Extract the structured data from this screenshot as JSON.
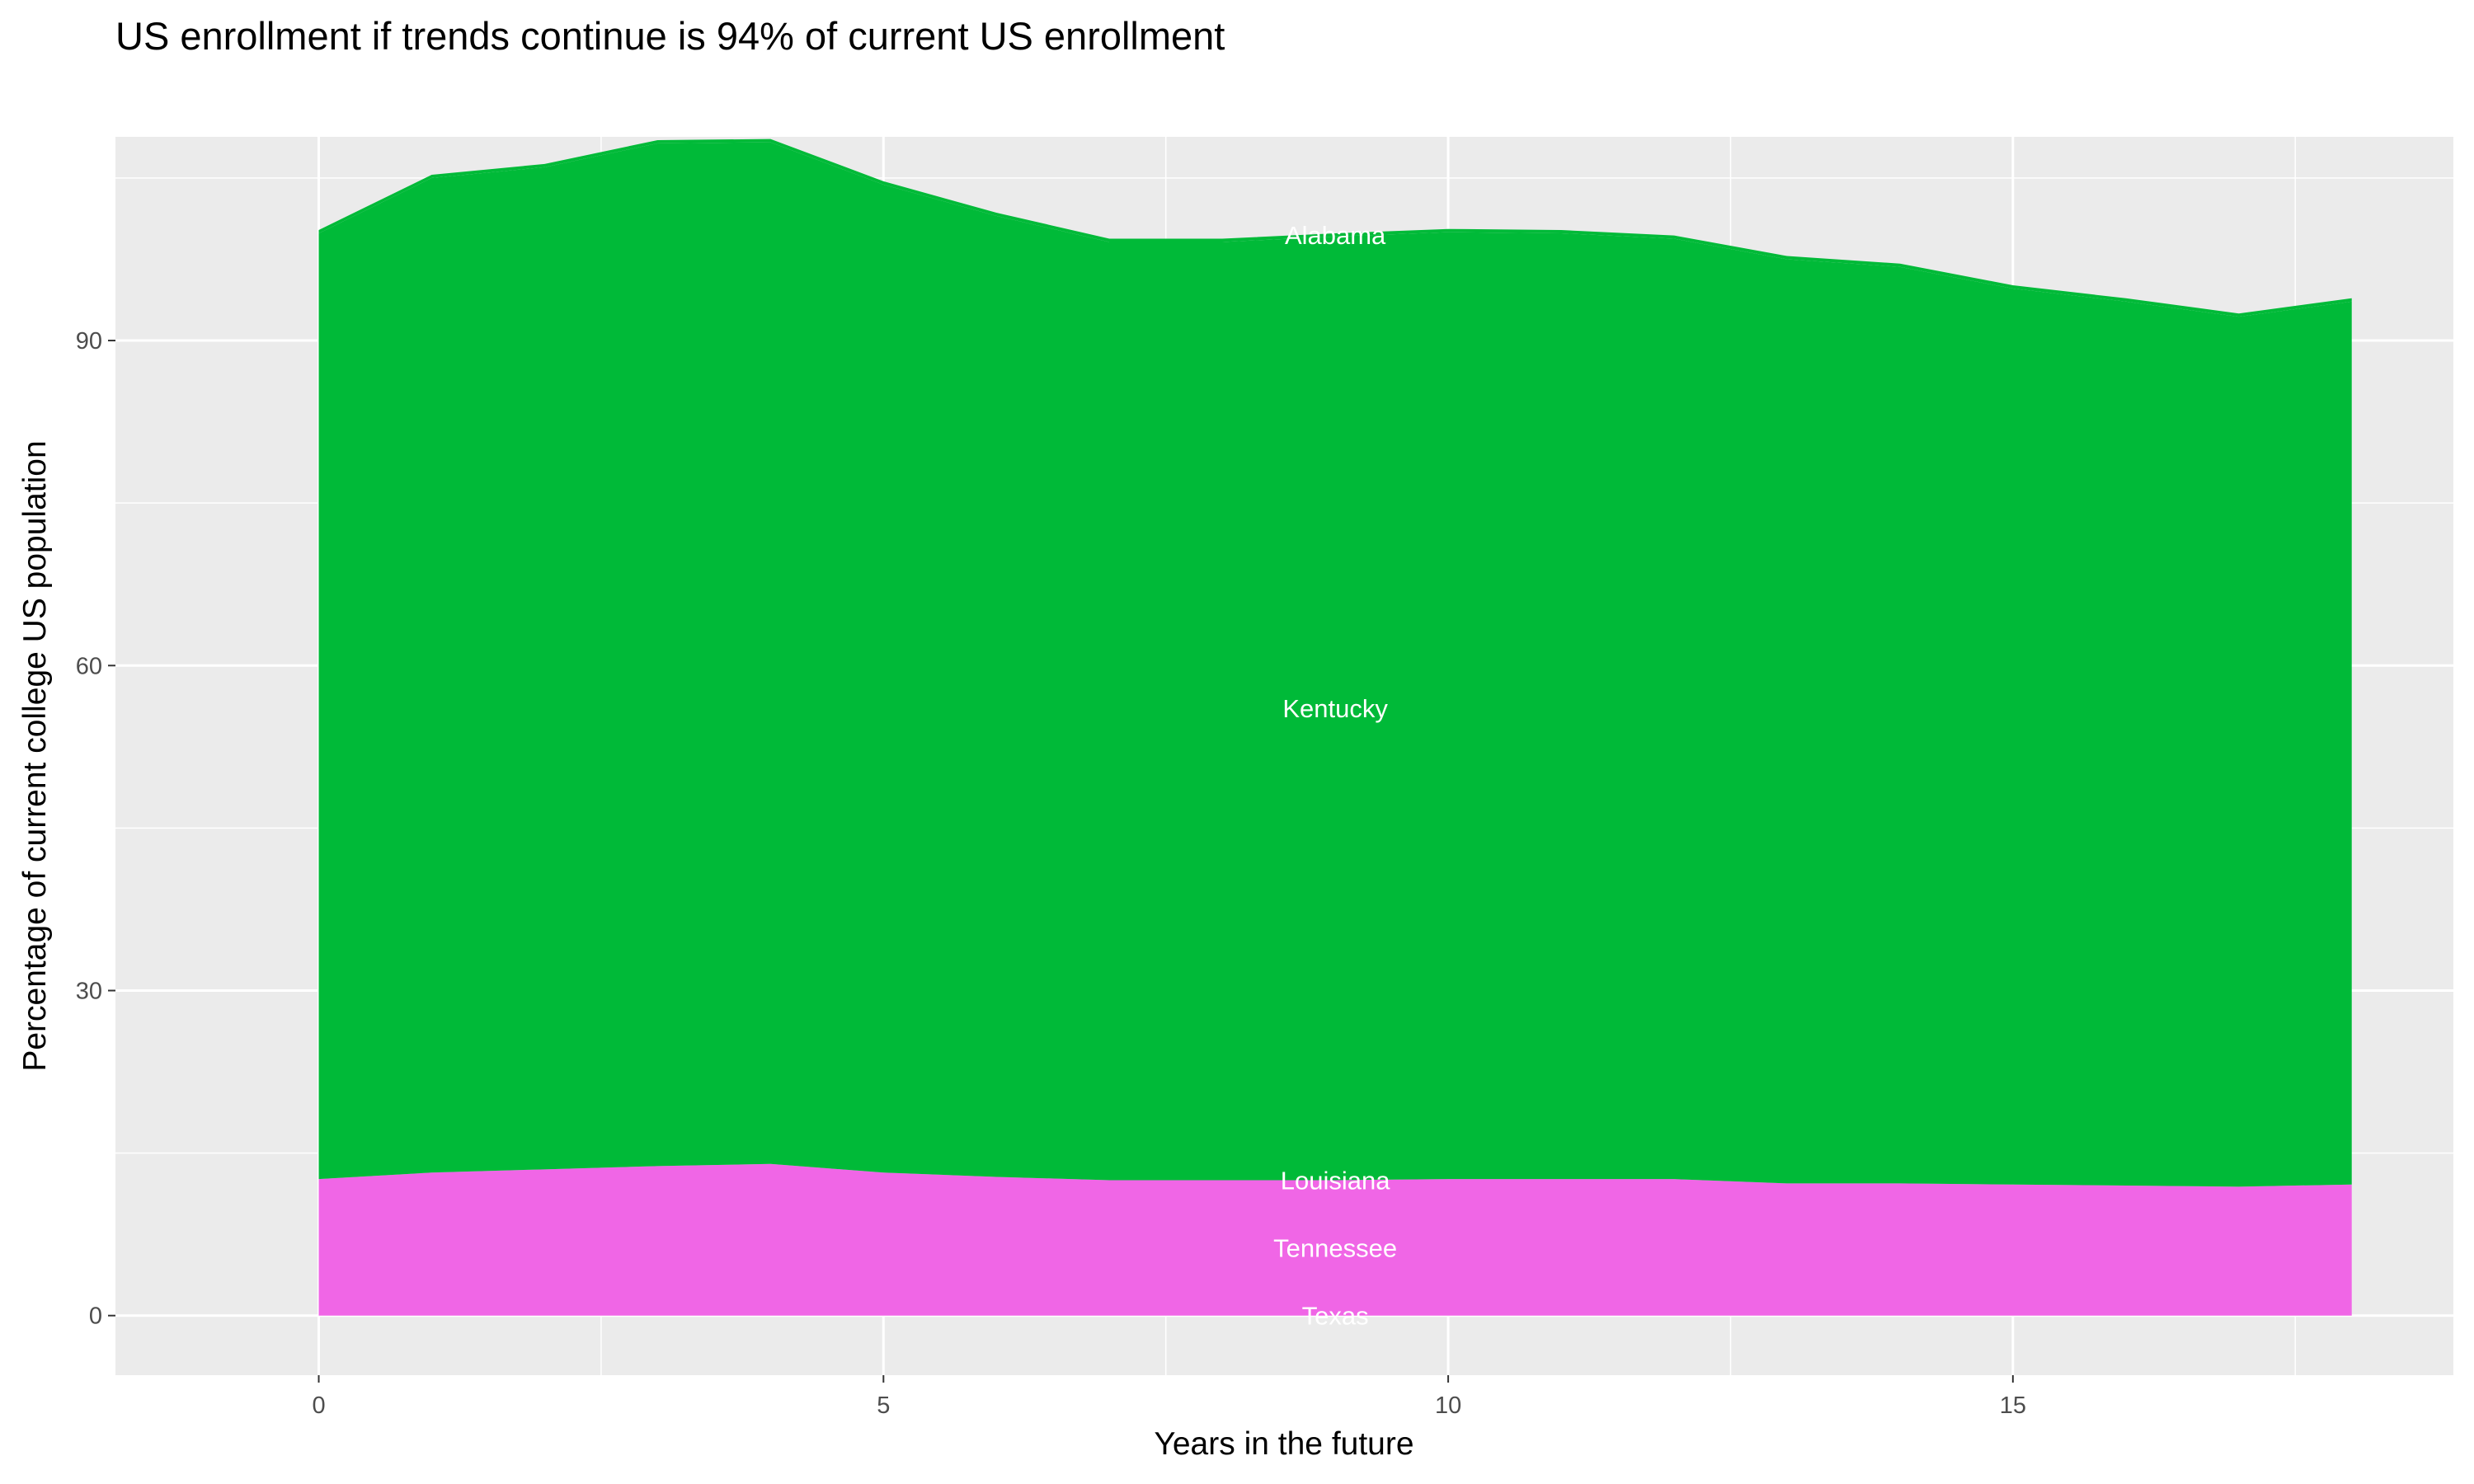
{
  "chart_data": {
    "type": "area",
    "stacked": true,
    "title": "US enrollment if trends continue is 94% of current US enrollment",
    "xlabel": "Years in the future",
    "ylabel": "Percentage of current college US population",
    "x": [
      0,
      1,
      2,
      3,
      4,
      5,
      6,
      7,
      8,
      9,
      10,
      11,
      12,
      13,
      14,
      15,
      16,
      17,
      18
    ],
    "xlim": [
      -1.8,
      18.9
    ],
    "ylim": [
      -5.5,
      108.8
    ],
    "xticks": [
      0,
      5,
      10,
      15
    ],
    "yticks": [
      0,
      30,
      60,
      90
    ],
    "grid": true,
    "legend": "none",
    "label_x": 9,
    "series": [
      {
        "name": "Texas",
        "color": "#F066E6",
        "values": [
          0,
          0,
          0,
          0,
          0,
          0,
          0,
          0,
          0,
          0,
          0,
          0,
          0,
          0,
          0,
          0,
          0,
          0,
          0
        ]
      },
      {
        "name": "Tennessee",
        "color": "#F066E6",
        "values": [
          12.6,
          13.2,
          13.5,
          13.8,
          14.0,
          13.2,
          12.8,
          12.5,
          12.5,
          12.5,
          12.6,
          12.6,
          12.6,
          12.2,
          12.2,
          12.1,
          12.0,
          11.9,
          12.1
        ]
      },
      {
        "name": "Louisiana",
        "color": "#F066E6",
        "values": [
          0,
          0,
          0,
          0,
          0,
          0,
          0,
          0,
          0,
          0,
          0,
          0,
          0,
          0,
          0,
          0,
          0,
          0,
          0
        ]
      },
      {
        "name": "Kentucky",
        "color": "#00BA38",
        "values": [
          87.3,
          91.8,
          92.5,
          94.4,
          94.3,
          91.2,
          88.7,
          86.6,
          86.6,
          87.1,
          87.4,
          87.3,
          86.8,
          85.3,
          84.6,
          82.7,
          81.6,
          80.3,
          81.5
        ]
      },
      {
        "name": "Alabama",
        "color": "#00BA38",
        "values": [
          0.3,
          0.3,
          0.3,
          0.3,
          0.3,
          0.3,
          0.3,
          0.3,
          0.3,
          0.3,
          0.3,
          0.3,
          0.3,
          0.3,
          0.3,
          0.3,
          0.3,
          0.3,
          0.3
        ]
      }
    ]
  }
}
